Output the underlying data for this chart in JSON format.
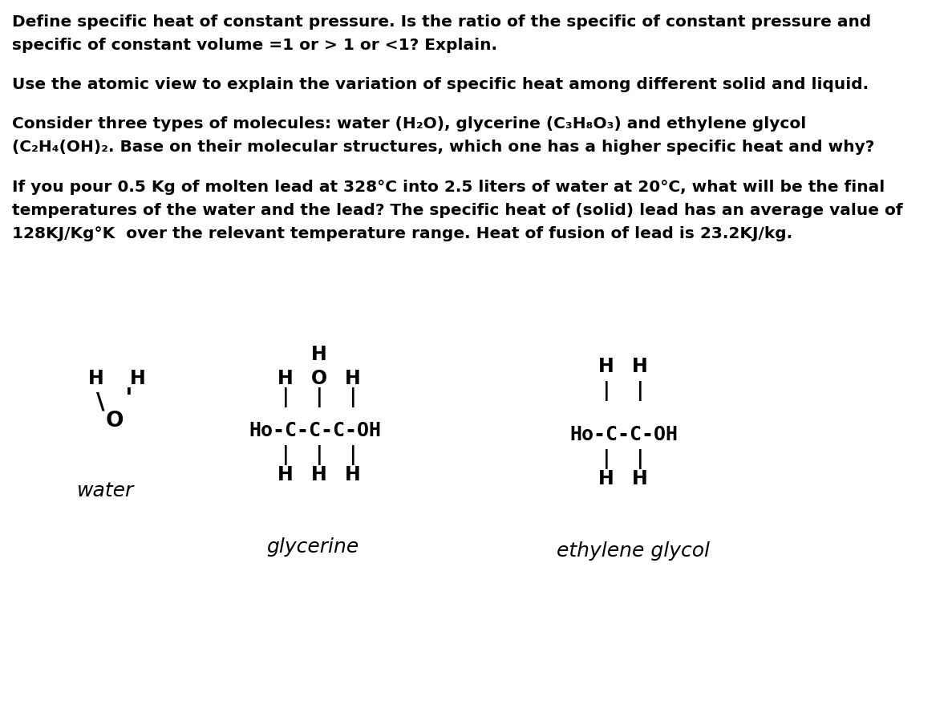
{
  "background_color": "#ffffff",
  "figsize": [
    11.87,
    8.99
  ],
  "dpi": 100,
  "paragraph1_line1": "Define specific heat of constant pressure. Is the ratio of the specific of constant pressure and",
  "paragraph1_line2": "specific of constant volume =1 or > 1 or <1? Explain.",
  "paragraph2": "Use the atomic view to explain the variation of specific heat among different solid and liquid.",
  "paragraph3_line1": "Consider three types of molecules: water (H₂O), glycerine (C₃H₈O₃) and ethylene glycol",
  "paragraph3_line2": "(C₂H₄(OH)₂. Base on their molecular structures, which one has a higher specific heat and why?",
  "paragraph4_line1": "If you pour 0.5 Kg of molten lead at 328°C into 2.5 liters of water at 20°C, what will be the final",
  "paragraph4_line2": "temperatures of the water and the lead? The specific heat of (solid) lead has an average value of",
  "paragraph4_line3": "128KJ/Kg°K  over the relevant temperature range. Heat of fusion of lead is 23.2KJ/kg.",
  "text_color": "#000000",
  "font_size_body": 14.5
}
